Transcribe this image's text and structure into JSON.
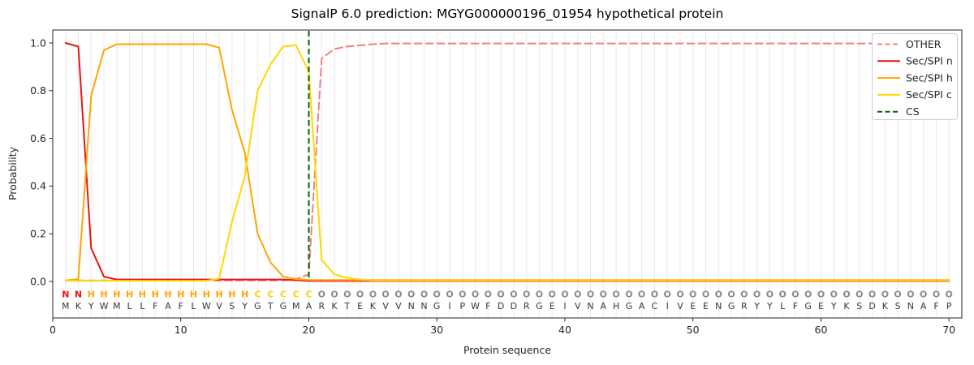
{
  "title": "SignalP 6.0 prediction: MGYG000000196_01954 hypothetical protein",
  "chart_data": {
    "type": "line",
    "title": "SignalP 6.0 prediction: MGYG000000196_01954 hypothetical protein",
    "xlabel": "Protein sequence",
    "ylabel": "Probability",
    "xlim": [
      0,
      71
    ],
    "ylim": [
      -0.153,
      1.054
    ],
    "xticks": [
      0,
      10,
      20,
      30,
      40,
      50,
      60,
      70
    ],
    "yticks": [
      0.0,
      0.2,
      0.4,
      0.6,
      0.8,
      1.0
    ],
    "grid": "vertical line at every residue",
    "legend_position": "upper-right",
    "positions": [
      1,
      2,
      3,
      4,
      5,
      6,
      7,
      8,
      9,
      10,
      11,
      12,
      13,
      14,
      15,
      16,
      17,
      18,
      19,
      20,
      21,
      22,
      23,
      24,
      25,
      26,
      27,
      28,
      29,
      30,
      31,
      32,
      33,
      34,
      35,
      36,
      37,
      38,
      39,
      40,
      41,
      42,
      43,
      44,
      45,
      46,
      47,
      48,
      49,
      50,
      51,
      52,
      53,
      54,
      55,
      56,
      57,
      58,
      59,
      60,
      61,
      62,
      63,
      64,
      65,
      66,
      67,
      68,
      69,
      70
    ],
    "series": [
      {
        "id": "other",
        "name": "OTHER",
        "color": "#f08080",
        "dash": true,
        "values": [
          0.004,
          0.004,
          0.004,
          0.004,
          0.004,
          0.004,
          0.004,
          0.004,
          0.004,
          0.004,
          0.004,
          0.004,
          0.004,
          0.004,
          0.004,
          0.004,
          0.004,
          0.004,
          0.01,
          0.03,
          0.935,
          0.975,
          0.985,
          0.99,
          0.995,
          0.998,
          0.998,
          0.998,
          0.998,
          0.998,
          0.998,
          0.998,
          0.998,
          0.998,
          0.998,
          0.998,
          0.998,
          0.998,
          0.998,
          0.998,
          0.998,
          0.998,
          0.998,
          0.998,
          0.998,
          0.998,
          0.998,
          0.998,
          0.998,
          0.998,
          0.998,
          0.998,
          0.998,
          0.998,
          0.998,
          0.998,
          0.998,
          0.998,
          0.998,
          0.998,
          0.998,
          0.998,
          0.998,
          0.998,
          0.998,
          0.998,
          0.998,
          0.998,
          0.998,
          0.998
        ]
      },
      {
        "id": "sec-spi-n",
        "name": "Sec/SPI n",
        "color": "#ee1111",
        "dash": false,
        "values": [
          1.0,
          0.985,
          0.14,
          0.02,
          0.008,
          0.008,
          0.008,
          0.008,
          0.008,
          0.008,
          0.008,
          0.008,
          0.008,
          0.008,
          0.008,
          0.008,
          0.008,
          0.008,
          0.005,
          0.002,
          0.002,
          0.002,
          0.002,
          0.002,
          0.002,
          0.002,
          0.002,
          0.002,
          0.002,
          0.002,
          0.002,
          0.002,
          0.002,
          0.002,
          0.002,
          0.002,
          0.002,
          0.002,
          0.002,
          0.002,
          0.002,
          0.002,
          0.002,
          0.002,
          0.002,
          0.002,
          0.002,
          0.002,
          0.002,
          0.002,
          0.002,
          0.002,
          0.002,
          0.002,
          0.002,
          0.002,
          0.002,
          0.002,
          0.002,
          0.002,
          0.002,
          0.002,
          0.002,
          0.002,
          0.002,
          0.002,
          0.002,
          0.002,
          0.002,
          0.002
        ]
      },
      {
        "id": "sec-spi-h",
        "name": "Sec/SPI h",
        "color": "#ffa500",
        "dash": false,
        "values": [
          0.004,
          0.01,
          0.78,
          0.97,
          0.995,
          0.995,
          0.995,
          0.995,
          0.995,
          0.995,
          0.995,
          0.995,
          0.98,
          0.72,
          0.54,
          0.2,
          0.08,
          0.02,
          0.01,
          0.006,
          0.006,
          0.006,
          0.006,
          0.006,
          0.006,
          0.006,
          0.006,
          0.006,
          0.006,
          0.006,
          0.006,
          0.006,
          0.006,
          0.006,
          0.006,
          0.006,
          0.006,
          0.006,
          0.006,
          0.006,
          0.006,
          0.006,
          0.006,
          0.006,
          0.006,
          0.006,
          0.006,
          0.006,
          0.006,
          0.006,
          0.006,
          0.006,
          0.006,
          0.006,
          0.006,
          0.006,
          0.006,
          0.006,
          0.006,
          0.006,
          0.006,
          0.006,
          0.006,
          0.006,
          0.006,
          0.006,
          0.006,
          0.006,
          0.006,
          0.006
        ]
      },
      {
        "id": "sec-spi-c",
        "name": "Sec/SPI c",
        "color": "#ffd700",
        "dash": false,
        "values": [
          0.003,
          0.003,
          0.003,
          0.003,
          0.003,
          0.003,
          0.003,
          0.003,
          0.003,
          0.003,
          0.003,
          0.003,
          0.012,
          0.25,
          0.44,
          0.8,
          0.91,
          0.985,
          0.99,
          0.88,
          0.09,
          0.03,
          0.015,
          0.008,
          0.004,
          0.004,
          0.004,
          0.004,
          0.004,
          0.004,
          0.004,
          0.004,
          0.004,
          0.004,
          0.004,
          0.004,
          0.004,
          0.004,
          0.004,
          0.004,
          0.004,
          0.004,
          0.004,
          0.004,
          0.004,
          0.004,
          0.004,
          0.004,
          0.004,
          0.004,
          0.004,
          0.004,
          0.004,
          0.004,
          0.004,
          0.004,
          0.004,
          0.004,
          0.004,
          0.004,
          0.004,
          0.004,
          0.004,
          0.004,
          0.004,
          0.004,
          0.004,
          0.004,
          0.004,
          0.004
        ]
      }
    ],
    "cs": {
      "label": "CS",
      "position": 20,
      "color": "#006400"
    },
    "legend": [
      {
        "label": "OTHER",
        "color": "#f08080",
        "dash": true
      },
      {
        "label": "Sec/SPI n",
        "color": "#ee1111",
        "dash": false
      },
      {
        "label": "Sec/SPI h",
        "color": "#ffa500",
        "dash": false
      },
      {
        "label": "Sec/SPI c",
        "color": "#ffd700",
        "dash": false
      },
      {
        "label": "CS",
        "color": "#006400",
        "dash": true
      }
    ],
    "sequence": "MKYWMLLFAFLWVSYGTGMARKTEKVVNNGIPWFDDRGEIVNAHGACIVEENGRYYLFGEYKSDKSNAFP",
    "regions": "NNHHHHHHHHHHHHHCCCCCOOOOOOOOOOOOOOOOOOOOOOOOOOOOOOOOOOOOOOOOOOOOOOOOOO",
    "region_colors": {
      "N": "#ee1111",
      "H": "#ffa500",
      "C": "#ffd700",
      "O": "#8a8a8a"
    },
    "colors": {
      "grid": "#e9e9e9",
      "axis": "#262626",
      "text": "#262626",
      "sequence": "#3a3a3a",
      "legend_border": "#cccccc"
    }
  }
}
